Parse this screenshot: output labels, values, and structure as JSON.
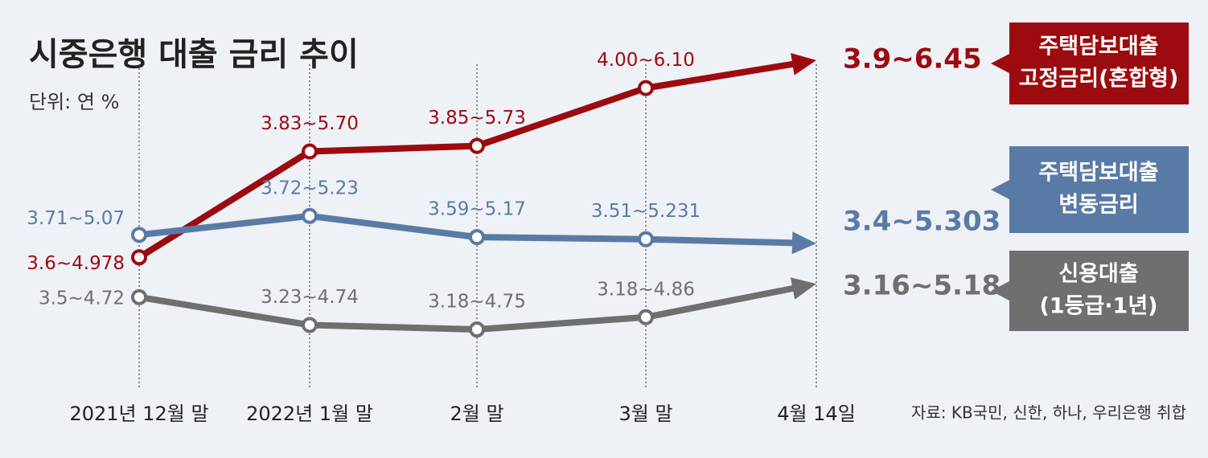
{
  "chart_data": {
    "type": "range-line",
    "title": "시중은행 대출 금리 추이",
    "unit": "단위: 연 %",
    "source": "자료: KB국민, 신한, 하나, 우리은행 취합",
    "categories": [
      "2021년 12월 말",
      "2022년 1월 말",
      "2월 말",
      "3월 말",
      "4월 14일"
    ],
    "series": [
      {
        "name": [
          "주택담보대출",
          "고정금리(혼합형)"
        ],
        "color": "#9c0b0f",
        "low": [
          3.6,
          3.83,
          3.85,
          4.0,
          3.9
        ],
        "high": [
          4.978,
          5.7,
          5.73,
          6.1,
          6.45
        ],
        "value_labels": [
          "3.6~4.978",
          "3.83~5.70",
          "3.85~5.73",
          "4.00~6.10",
          "3.9~6.45"
        ]
      },
      {
        "name": [
          "주택담보대출",
          "변동금리"
        ],
        "color": "#5a7aa6",
        "low": [
          3.71,
          3.72,
          3.59,
          3.51,
          3.4
        ],
        "high": [
          5.07,
          5.23,
          5.17,
          5.231,
          5.303
        ],
        "value_labels": [
          "3.71~5.07",
          "3.72~5.23",
          "3.59~5.17",
          "3.51~5.231",
          "3.4~5.303"
        ]
      },
      {
        "name": [
          "신용대출",
          "(1등급·1년)"
        ],
        "color": "#6f6f6f",
        "low": [
          3.5,
          3.23,
          3.18,
          3.18,
          3.16
        ],
        "high": [
          4.72,
          4.74,
          4.75,
          4.86,
          5.18
        ],
        "value_labels": [
          "3.5~4.72",
          "3.23~4.74",
          "3.18~4.75",
          "3.18~4.86",
          "3.16~5.18"
        ]
      }
    ]
  }
}
